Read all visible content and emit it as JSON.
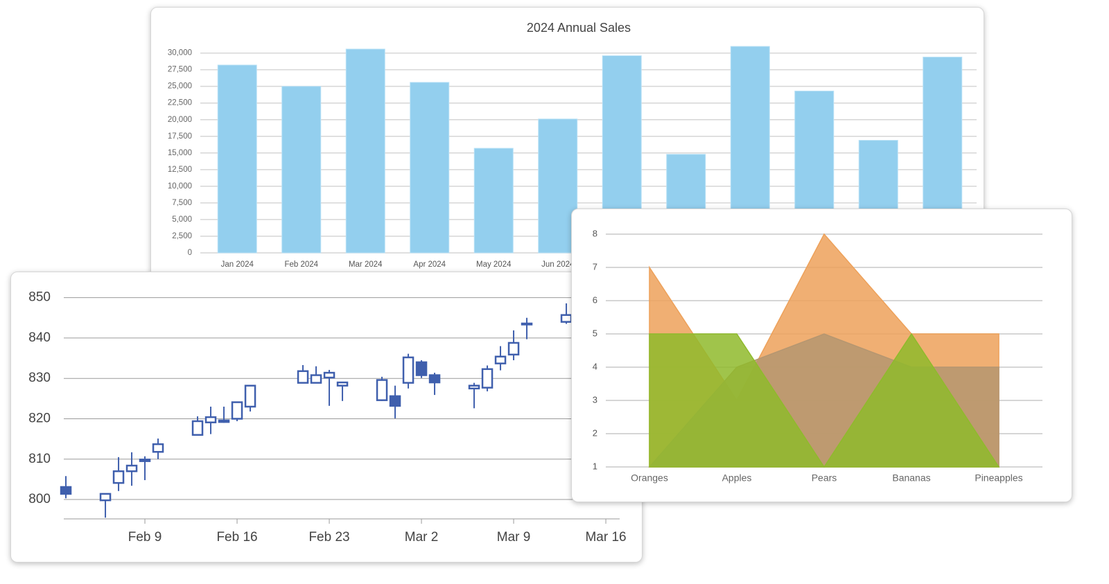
{
  "chart_data": [
    {
      "type": "bar",
      "title": "2024 Annual Sales",
      "categories": [
        "Jan 2024",
        "Feb 2024",
        "Mar 2024",
        "Apr 2024",
        "May 2024",
        "Jun 2024",
        null,
        null,
        null,
        null,
        null,
        null
      ],
      "values": [
        28200,
        25000,
        30600,
        25600,
        15700,
        20100,
        29600,
        14800,
        31000,
        24300,
        16900,
        29400
      ],
      "color": "#93cfee",
      "ylim": [
        0,
        31000
      ],
      "yticks": [
        0,
        {
          "value": 2500,
          "label": "2,500"
        },
        {
          "value": 5000,
          "label": "5,000"
        },
        {
          "value": 7500,
          "label": "7,500"
        },
        {
          "value": 10000,
          "label": "10,000"
        },
        {
          "value": 12500,
          "label": "12,500"
        },
        {
          "value": 15000,
          "label": "15,000"
        },
        {
          "value": 17500,
          "label": "17,500"
        },
        {
          "value": 20000,
          "label": "20,000"
        },
        {
          "value": 22500,
          "label": "22,500"
        },
        {
          "value": 25000,
          "label": "25,000"
        },
        {
          "value": 27500,
          "label": "27,500"
        },
        {
          "value": 30000,
          "label": "30,000"
        }
      ],
      "grid": true
    },
    {
      "type": "candlestick",
      "x": [
        3,
        6,
        7,
        8,
        9,
        10,
        13,
        14,
        15,
        16,
        17,
        21,
        22,
        23,
        24,
        27,
        28,
        29,
        30,
        31,
        34,
        35,
        36,
        37,
        38,
        41
      ],
      "open": [
        803.1,
        799.8,
        804.1,
        807.0,
        809.5,
        811.8,
        816.0,
        819.1,
        819.2,
        820.0,
        823.0,
        828.9,
        828.9,
        830.2,
        828.2,
        824.6,
        825.6,
        828.9,
        834.0,
        830.8,
        827.5,
        827.7,
        833.7,
        835.9,
        843.4,
        844.0
      ],
      "high": [
        805.8,
        801.4,
        810.5,
        811.7,
        810.7,
        815.1,
        820.6,
        823.0,
        823.0,
        824.1,
        828.2,
        833.3,
        833.0,
        832.1,
        829.0,
        830.4,
        828.2,
        836.1,
        834.5,
        831.4,
        828.9,
        833.2,
        838.0,
        841.9,
        845.0,
        848.6
      ],
      "low": [
        800.3,
        795.5,
        802.1,
        803.4,
        804.8,
        810.0,
        815.8,
        816.2,
        819.0,
        819.4,
        821.8,
        828.9,
        828.9,
        823.2,
        824.4,
        824.4,
        820.1,
        827.5,
        830.1,
        825.9,
        822.6,
        826.8,
        832.0,
        834.5,
        839.7,
        843.5
      ],
      "close": [
        801.4,
        801.4,
        807.0,
        808.4,
        809.9,
        813.7,
        819.4,
        820.4,
        819.6,
        824.1,
        828.2,
        831.8,
        830.8,
        831.4,
        829.0,
        829.6,
        823.2,
        835.2,
        830.8,
        829.0,
        828.2,
        832.3,
        835.4,
        838.8,
        843.6,
        845.7
      ],
      "color": "#3f5fad",
      "xlim": [
        2.84,
        45.05
      ],
      "xticks": [
        {
          "value": 9,
          "label": "Feb 9"
        },
        {
          "value": 16,
          "label": "Feb 16"
        },
        {
          "value": 23,
          "label": "Feb 23"
        },
        {
          "value": 30,
          "label": "Mar 2"
        },
        {
          "value": 37,
          "label": "Mar 9"
        },
        {
          "value": 44,
          "label": "Mar 16"
        }
      ],
      "ylim": [
        795.2,
        852
      ],
      "yticks": [
        800,
        810,
        820,
        830,
        840,
        850
      ],
      "grid": true
    },
    {
      "type": "area",
      "categories": [
        "Oranges",
        "Apples",
        "Pears",
        "Bananas",
        "Pineapples"
      ],
      "series": [
        {
          "color": "#eda15a",
          "values": [
            7,
            3,
            8,
            5,
            5
          ]
        },
        {
          "color": "#b59670",
          "values": [
            1,
            4,
            5,
            4,
            4
          ]
        },
        {
          "color": "#8fba2c",
          "values": [
            5,
            5,
            1,
            5,
            1
          ]
        }
      ],
      "ylim": [
        1,
        8
      ],
      "yticks": [
        1,
        2,
        3,
        4,
        5,
        6,
        7,
        8
      ],
      "grid": true
    }
  ]
}
